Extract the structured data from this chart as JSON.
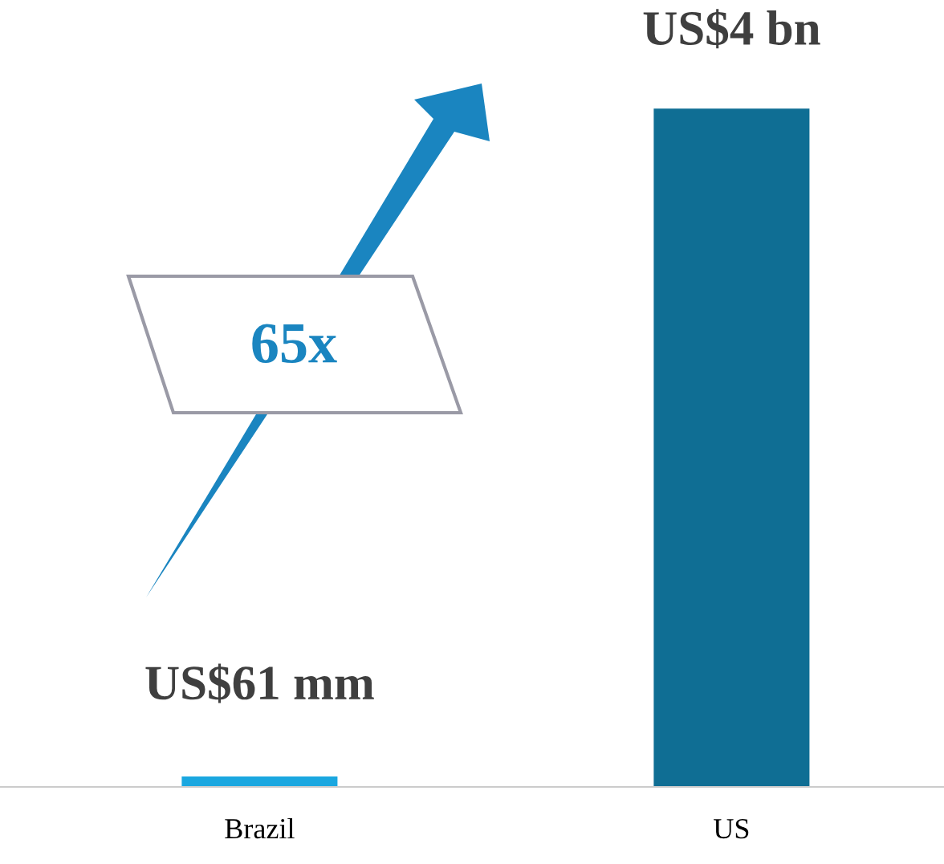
{
  "chart_data": {
    "type": "bar",
    "categories": [
      "Brazil",
      "US"
    ],
    "values": [
      61,
      4000
    ],
    "colors": [
      "#1aa7e0",
      "#0f6e94"
    ],
    "value_labels": [
      "US$61 mm",
      "US$4 bn"
    ],
    "annotations": [
      "65x"
    ],
    "grid": false,
    "legend": false
  }
}
